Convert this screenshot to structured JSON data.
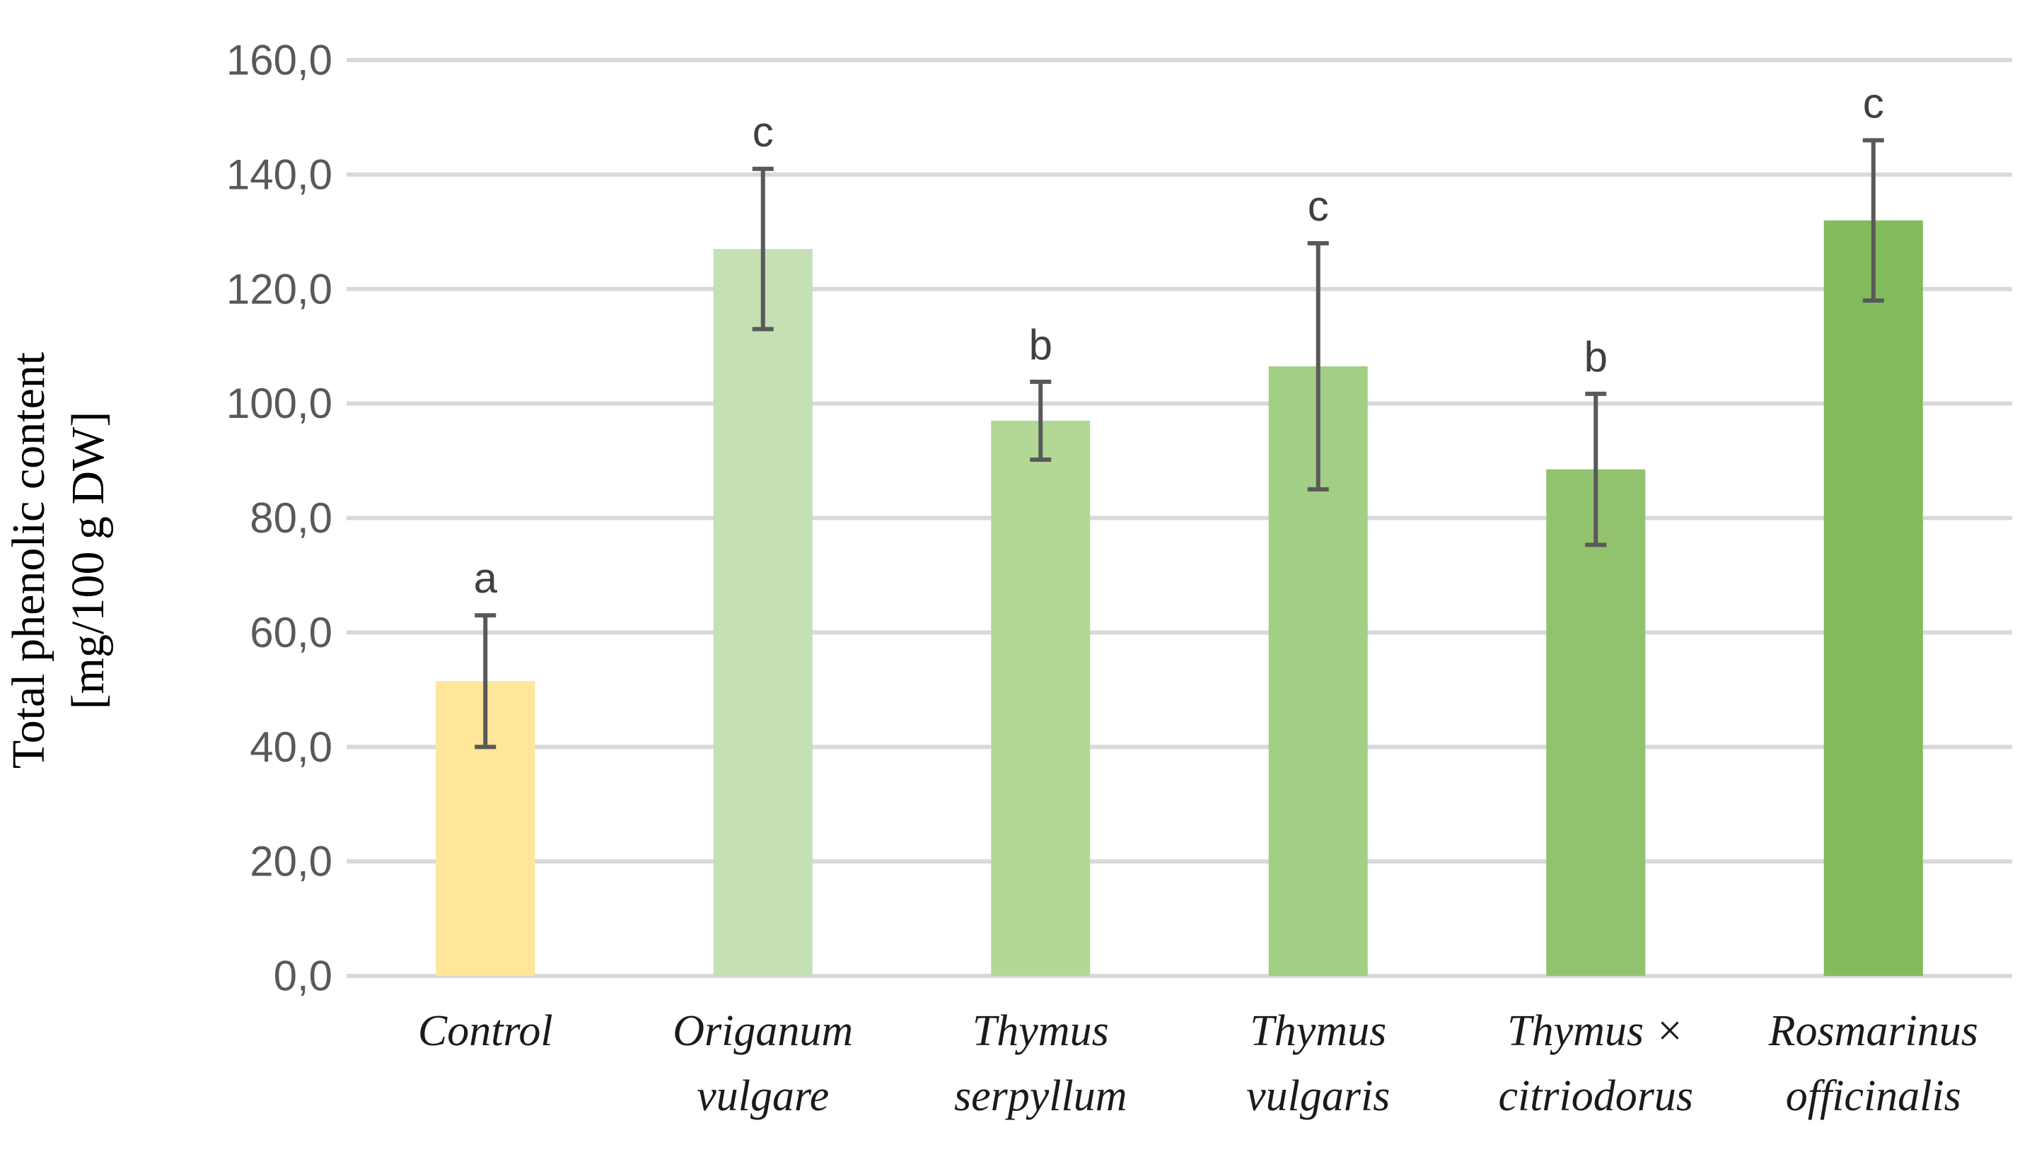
{
  "chart_data": {
    "type": "bar",
    "title": "",
    "xlabel": "",
    "ylabel_lines": [
      "Total phenolic content",
      "[mg/100 g DW]"
    ],
    "ylim": [
      0,
      160
    ],
    "ytick_step": 20,
    "ytick_labels": [
      "0,0",
      "20,0",
      "40,0",
      "60,0",
      "80,0",
      "100,0",
      "120,0",
      "140,0",
      "160,0"
    ],
    "grid": true,
    "categories": [
      {
        "lines": [
          "Control"
        ]
      },
      {
        "lines": [
          "Origanum",
          "vulgare"
        ]
      },
      {
        "lines": [
          "Thymus",
          "serpyllum"
        ]
      },
      {
        "lines": [
          "Thymus",
          "vulgaris"
        ]
      },
      {
        "lines": [
          "Thymus ×",
          "citriodorus"
        ]
      },
      {
        "lines": [
          "Rosmarinus",
          "officinalis"
        ]
      }
    ],
    "values": [
      51.5,
      127.0,
      97.0,
      106.5,
      88.5,
      132.0
    ],
    "errors": [
      11.5,
      14.0,
      6.8,
      21.5,
      13.2,
      14.0
    ],
    "significance": [
      "a",
      "c",
      "b",
      "c",
      "b",
      "c"
    ],
    "colors": [
      "#ffe699",
      "#c5e0b4",
      "#b3d896",
      "#a3ce85",
      "#93c26f",
      "#82bc5c"
    ]
  }
}
